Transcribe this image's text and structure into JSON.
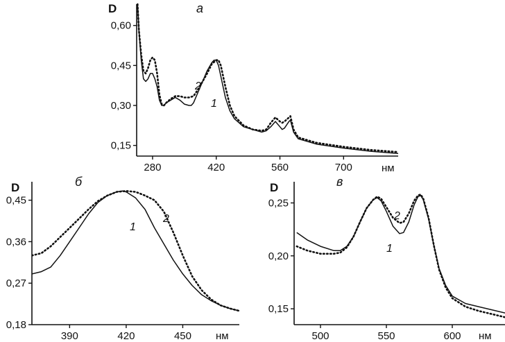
{
  "chart_data": [
    {
      "type": "line",
      "panel_letter": "а",
      "ylabel": "D",
      "xunit": "нм",
      "xlim": [
        245,
        820
      ],
      "ylim": [
        0.11,
        0.68
      ],
      "xticks": [
        280,
        420,
        560,
        700
      ],
      "xtick_labels": [
        "280",
        "420",
        "560",
        "700"
      ],
      "yticks": [
        0.15,
        0.3,
        0.45,
        0.6
      ],
      "ytick_labels": [
        "0,15",
        "0,30",
        "0,45",
        "0,60"
      ],
      "series": [
        {
          "name": "1",
          "style": "solid",
          "points": [
            [
              247,
              0.68
            ],
            [
              250,
              0.58
            ],
            [
              255,
              0.47
            ],
            [
              260,
              0.4
            ],
            [
              265,
              0.39
            ],
            [
              270,
              0.4
            ],
            [
              275,
              0.42
            ],
            [
              280,
              0.42
            ],
            [
              285,
              0.4
            ],
            [
              290,
              0.37
            ],
            [
              295,
              0.32
            ],
            [
              300,
              0.3
            ],
            [
              305,
              0.3
            ],
            [
              310,
              0.31
            ],
            [
              320,
              0.32
            ],
            [
              330,
              0.33
            ],
            [
              340,
              0.32
            ],
            [
              350,
              0.305
            ],
            [
              360,
              0.3
            ],
            [
              365,
              0.3
            ],
            [
              370,
              0.31
            ],
            [
              380,
              0.35
            ],
            [
              390,
              0.39
            ],
            [
              400,
              0.43
            ],
            [
              410,
              0.46
            ],
            [
              415,
              0.47
            ],
            [
              420,
              0.47
            ],
            [
              425,
              0.45
            ],
            [
              430,
              0.41
            ],
            [
              440,
              0.33
            ],
            [
              450,
              0.28
            ],
            [
              460,
              0.25
            ],
            [
              480,
              0.22
            ],
            [
              500,
              0.21
            ],
            [
              520,
              0.2
            ],
            [
              530,
              0.205
            ],
            [
              540,
              0.22
            ],
            [
              550,
              0.24
            ],
            [
              560,
              0.22
            ],
            [
              565,
              0.21
            ],
            [
              570,
              0.215
            ],
            [
              580,
              0.24
            ],
            [
              583,
              0.245
            ],
            [
              590,
              0.2
            ],
            [
              600,
              0.175
            ],
            [
              640,
              0.155
            ],
            [
              700,
              0.14
            ],
            [
              760,
              0.128
            ],
            [
              820,
              0.12
            ]
          ]
        },
        {
          "name": "2",
          "style": "dotted",
          "points": [
            [
              247,
              0.68
            ],
            [
              250,
              0.58
            ],
            [
              255,
              0.49
            ],
            [
              260,
              0.43
            ],
            [
              265,
              0.42
            ],
            [
              270,
              0.44
            ],
            [
              275,
              0.47
            ],
            [
              280,
              0.48
            ],
            [
              285,
              0.47
            ],
            [
              290,
              0.42
            ],
            [
              295,
              0.34
            ],
            [
              300,
              0.305
            ],
            [
              305,
              0.3
            ],
            [
              310,
              0.31
            ],
            [
              320,
              0.325
            ],
            [
              330,
              0.335
            ],
            [
              340,
              0.335
            ],
            [
              350,
              0.33
            ],
            [
              360,
              0.33
            ],
            [
              370,
              0.335
            ],
            [
              380,
              0.36
            ],
            [
              390,
              0.39
            ],
            [
              400,
              0.42
            ],
            [
              410,
              0.455
            ],
            [
              420,
              0.47
            ],
            [
              425,
              0.47
            ],
            [
              430,
              0.45
            ],
            [
              440,
              0.37
            ],
            [
              450,
              0.3
            ],
            [
              460,
              0.26
            ],
            [
              480,
              0.225
            ],
            [
              500,
              0.21
            ],
            [
              520,
              0.205
            ],
            [
              530,
              0.21
            ],
            [
              540,
              0.235
            ],
            [
              550,
              0.255
            ],
            [
              560,
              0.24
            ],
            [
              565,
              0.235
            ],
            [
              570,
              0.24
            ],
            [
              580,
              0.255
            ],
            [
              583,
              0.26
            ],
            [
              590,
              0.21
            ],
            [
              600,
              0.18
            ],
            [
              640,
              0.16
            ],
            [
              700,
              0.145
            ],
            [
              760,
              0.133
            ],
            [
              820,
              0.125
            ]
          ]
        }
      ]
    },
    {
      "type": "line",
      "panel_letter": "б",
      "ylabel": "D",
      "xunit": "нм",
      "xlim": [
        370,
        480
      ],
      "ylim": [
        0.18,
        0.49
      ],
      "xticks": [
        390,
        420,
        450
      ],
      "xtick_labels": [
        "390",
        "420",
        "450"
      ],
      "yticks": [
        0.18,
        0.27,
        0.36,
        0.45
      ],
      "ytick_labels": [
        "0,18",
        "0,27",
        "0,36",
        "0,45"
      ],
      "series": [
        {
          "name": "1",
          "style": "solid",
          "points": [
            [
              370,
              0.29
            ],
            [
              375,
              0.295
            ],
            [
              380,
              0.305
            ],
            [
              385,
              0.33
            ],
            [
              390,
              0.36
            ],
            [
              395,
              0.39
            ],
            [
              400,
              0.42
            ],
            [
              405,
              0.445
            ],
            [
              410,
              0.46
            ],
            [
              415,
              0.468
            ],
            [
              418,
              0.47
            ],
            [
              420,
              0.468
            ],
            [
              425,
              0.455
            ],
            [
              430,
              0.43
            ],
            [
              435,
              0.39
            ],
            [
              440,
              0.355
            ],
            [
              445,
              0.32
            ],
            [
              450,
              0.29
            ],
            [
              455,
              0.265
            ],
            [
              460,
              0.245
            ],
            [
              465,
              0.232
            ],
            [
              470,
              0.222
            ],
            [
              475,
              0.215
            ],
            [
              480,
              0.21
            ]
          ]
        },
        {
          "name": "2",
          "style": "dotted",
          "points": [
            [
              370,
              0.33
            ],
            [
              375,
              0.335
            ],
            [
              380,
              0.35
            ],
            [
              385,
              0.37
            ],
            [
              390,
              0.39
            ],
            [
              395,
              0.41
            ],
            [
              400,
              0.43
            ],
            [
              405,
              0.448
            ],
            [
              410,
              0.46
            ],
            [
              415,
              0.468
            ],
            [
              420,
              0.47
            ],
            [
              425,
              0.468
            ],
            [
              430,
              0.46
            ],
            [
              435,
              0.45
            ],
            [
              440,
              0.425
            ],
            [
              445,
              0.38
            ],
            [
              450,
              0.33
            ],
            [
              455,
              0.285
            ],
            [
              460,
              0.255
            ],
            [
              465,
              0.235
            ],
            [
              470,
              0.222
            ],
            [
              475,
              0.215
            ],
            [
              480,
              0.21
            ]
          ]
        }
      ]
    },
    {
      "type": "line",
      "panel_letter": "в",
      "ylabel": "D",
      "xunit": "нм",
      "xlim": [
        480,
        640
      ],
      "ylim": [
        0.135,
        0.27
      ],
      "xticks": [
        500,
        550,
        600
      ],
      "xtick_labels": [
        "500",
        "550",
        "600"
      ],
      "yticks": [
        0.15,
        0.2,
        0.25
      ],
      "ytick_labels": [
        "0,15",
        "0,20",
        "0,25"
      ],
      "series": [
        {
          "name": "1",
          "style": "solid",
          "points": [
            [
              482,
              0.222
            ],
            [
              490,
              0.215
            ],
            [
              500,
              0.209
            ],
            [
              510,
              0.205
            ],
            [
              515,
              0.205
            ],
            [
              520,
              0.209
            ],
            [
              525,
              0.218
            ],
            [
              530,
              0.232
            ],
            [
              535,
              0.245
            ],
            [
              540,
              0.253
            ],
            [
              543,
              0.255
            ],
            [
              546,
              0.252
            ],
            [
              550,
              0.242
            ],
            [
              555,
              0.228
            ],
            [
              560,
              0.221
            ],
            [
              563,
              0.222
            ],
            [
              567,
              0.232
            ],
            [
              571,
              0.248
            ],
            [
              574,
              0.256
            ],
            [
              576,
              0.257
            ],
            [
              578,
              0.253
            ],
            [
              582,
              0.235
            ],
            [
              586,
              0.21
            ],
            [
              590,
              0.188
            ],
            [
              595,
              0.172
            ],
            [
              600,
              0.162
            ],
            [
              610,
              0.155
            ],
            [
              620,
              0.152
            ],
            [
              630,
              0.149
            ],
            [
              640,
              0.146
            ]
          ]
        },
        {
          "name": "2",
          "style": "dotted",
          "points": [
            [
              482,
              0.209
            ],
            [
              490,
              0.205
            ],
            [
              500,
              0.202
            ],
            [
              510,
              0.202
            ],
            [
              515,
              0.203
            ],
            [
              520,
              0.208
            ],
            [
              525,
              0.218
            ],
            [
              530,
              0.232
            ],
            [
              535,
              0.245
            ],
            [
              540,
              0.253
            ],
            [
              543,
              0.256
            ],
            [
              546,
              0.254
            ],
            [
              550,
              0.246
            ],
            [
              555,
              0.236
            ],
            [
              560,
              0.231
            ],
            [
              563,
              0.232
            ],
            [
              567,
              0.24
            ],
            [
              571,
              0.252
            ],
            [
              574,
              0.257
            ],
            [
              576,
              0.258
            ],
            [
              578,
              0.254
            ],
            [
              582,
              0.236
            ],
            [
              586,
              0.21
            ],
            [
              590,
              0.187
            ],
            [
              595,
              0.17
            ],
            [
              600,
              0.16
            ],
            [
              610,
              0.152
            ],
            [
              620,
              0.148
            ],
            [
              630,
              0.145
            ],
            [
              640,
              0.142
            ]
          ]
        }
      ]
    }
  ]
}
